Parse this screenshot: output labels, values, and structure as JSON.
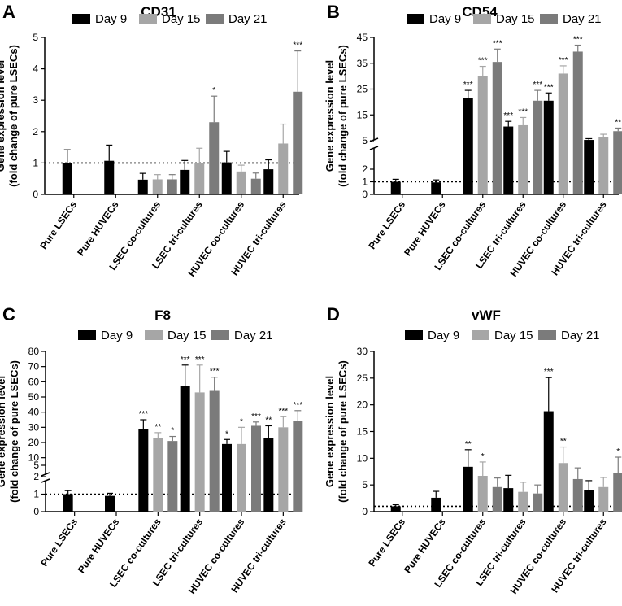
{
  "chart_data": [
    {
      "panel": "A",
      "type": "bar",
      "title": "CD31",
      "ylabel": [
        "Gene expression level",
        "(fold change of pure LSECs)"
      ],
      "categories": [
        "Pure LSECs",
        "Pure HUVECs",
        "LSEC co-cultures",
        "LSEC tri-cultures",
        "HUVEC co-cultures",
        "HUVEC tri-cultures"
      ],
      "series": [
        {
          "name": "Day 9",
          "color": "#000000",
          "values": [
            1.0,
            1.07,
            0.47,
            0.78,
            1.02,
            0.8
          ],
          "errors": [
            0.42,
            0.5,
            0.2,
            0.3,
            0.35,
            0.3
          ],
          "sig": [
            "",
            "",
            "",
            "",
            "",
            ""
          ]
        },
        {
          "name": "Day 15",
          "color": "#a6a6a6",
          "values": [
            null,
            null,
            0.48,
            1.0,
            0.73,
            1.62
          ],
          "errors": [
            null,
            null,
            0.15,
            0.47,
            0.2,
            0.62
          ],
          "sig": [
            "",
            "",
            "",
            "",
            "",
            ""
          ]
        },
        {
          "name": "Day 21",
          "color": "#7b7b7b",
          "values": [
            null,
            null,
            0.48,
            2.3,
            0.5,
            3.27
          ],
          "errors": [
            null,
            null,
            0.15,
            0.83,
            0.18,
            1.3
          ],
          "sig": [
            "",
            "",
            "",
            "*",
            "",
            "***"
          ]
        }
      ],
      "ylim": [
        0,
        5
      ],
      "yticks": [
        0,
        1,
        2,
        3,
        4,
        5
      ],
      "reference_line": 1,
      "legend_position": "top"
    },
    {
      "panel": "B",
      "type": "bar",
      "title": "CD54",
      "ylabel": [
        "Gene expression level",
        "(fold change of pure LSECs)"
      ],
      "categories": [
        "Pure LSECs",
        "Pure HUVECs",
        "LSEC co-cultures",
        "LSEC tri-cultures",
        "HUVEC co-cultures",
        "HUVEC tri-cultures"
      ],
      "series": [
        {
          "name": "Day 9",
          "color": "#000000",
          "values": [
            1.0,
            0.95,
            21.5,
            10.5,
            20.5,
            5.3
          ],
          "errors": [
            0.2,
            0.2,
            3.0,
            2.0,
            3.0,
            0.5
          ],
          "sig": [
            "",
            "",
            "***",
            "***",
            "***",
            ""
          ]
        },
        {
          "name": "Day 15",
          "color": "#a6a6a6",
          "values": [
            null,
            null,
            30.0,
            11.0,
            31.0,
            6.5
          ],
          "errors": [
            null,
            null,
            3.8,
            3.0,
            3.0,
            1.0
          ],
          "sig": [
            "",
            "",
            "***",
            "***",
            "***",
            ""
          ]
        },
        {
          "name": "Day 21",
          "color": "#7b7b7b",
          "values": [
            null,
            null,
            35.5,
            20.5,
            39.5,
            8.7
          ],
          "errors": [
            null,
            null,
            5.0,
            4.0,
            2.5,
            1.2
          ],
          "sig": [
            "",
            "",
            "***",
            "***",
            "***",
            "**"
          ]
        }
      ],
      "ylim": [
        0,
        45
      ],
      "broken_axis": {
        "lower": [
          0,
          2
        ],
        "upper": [
          2,
          45
        ]
      },
      "yticks": [
        0,
        1,
        2,
        5,
        15,
        25,
        35,
        45
      ],
      "reference_line": 1,
      "legend_position": "top"
    },
    {
      "panel": "C",
      "type": "bar",
      "title": "F8",
      "ylabel": [
        "Gene expression level",
        "(fold change of pure LSECs)"
      ],
      "categories": [
        "Pure LSECs",
        "Pure HUVECs",
        "LSEC co-cultures",
        "LSEC tri-cultures",
        "HUVEC co-cultures",
        "HUVEC tri-cultures"
      ],
      "series": [
        {
          "name": "Day 9",
          "color": "#000000",
          "values": [
            1.0,
            0.9,
            29.0,
            57.0,
            19.0,
            23.0
          ],
          "errors": [
            0.2,
            0.15,
            6.0,
            14.0,
            3.0,
            8.0
          ],
          "sig": [
            "",
            "",
            "***",
            "***",
            "*",
            "**"
          ]
        },
        {
          "name": "Day 15",
          "color": "#a6a6a6",
          "values": [
            null,
            null,
            23.0,
            53.0,
            19.0,
            30.0
          ],
          "errors": [
            null,
            null,
            3.5,
            18.0,
            11.0,
            7.0
          ],
          "sig": [
            "",
            "",
            "**",
            "***",
            "*",
            "***"
          ]
        },
        {
          "name": "Day 21",
          "color": "#7b7b7b",
          "values": [
            null,
            null,
            21.0,
            54.0,
            31.0,
            34.0
          ],
          "errors": [
            null,
            null,
            3.0,
            9.0,
            2.5,
            7.0
          ],
          "sig": [
            "",
            "",
            "*",
            "***",
            "***",
            "***"
          ]
        }
      ],
      "ylim": [
        0,
        80
      ],
      "broken_axis": {
        "lower": [
          0,
          2
        ],
        "upper": [
          2,
          80
        ]
      },
      "yticks": [
        0,
        1,
        2,
        5,
        10,
        20,
        30,
        40,
        50,
        60,
        70,
        80
      ],
      "reference_line": 1,
      "legend_position": "top"
    },
    {
      "panel": "D",
      "type": "bar",
      "title": "vWF",
      "ylabel": [
        "Gene expression level",
        "(fold change of pure LSECs)"
      ],
      "categories": [
        "Pure LSECs",
        "Pure HUVECs",
        "LSEC co-cultures",
        "LSEC tri-cultures",
        "HUVEC co-cultures",
        "HUVEC tri-cultures"
      ],
      "series": [
        {
          "name": "Day 9",
          "color": "#000000",
          "values": [
            1.0,
            2.6,
            8.4,
            4.4,
            18.8,
            4.1
          ],
          "errors": [
            0.3,
            1.2,
            3.2,
            2.4,
            6.3,
            1.7
          ],
          "sig": [
            "",
            "",
            "**",
            "",
            "***",
            ""
          ]
        },
        {
          "name": "Day 15",
          "color": "#a6a6a6",
          "values": [
            null,
            null,
            6.7,
            3.7,
            9.1,
            4.6
          ],
          "errors": [
            null,
            null,
            2.6,
            1.8,
            3.0,
            1.8
          ],
          "sig": [
            "",
            "",
            "*",
            "",
            "**",
            ""
          ]
        },
        {
          "name": "Day 21",
          "color": "#7b7b7b",
          "values": [
            null,
            null,
            4.6,
            3.4,
            6.1,
            7.2
          ],
          "errors": [
            null,
            null,
            1.7,
            1.6,
            2.1,
            3.0
          ],
          "sig": [
            "",
            "",
            "",
            "",
            "",
            "*"
          ]
        }
      ],
      "ylim": [
        0,
        30
      ],
      "yticks": [
        0,
        5,
        10,
        15,
        20,
        25,
        30
      ],
      "reference_line": 1,
      "legend_position": "top"
    }
  ]
}
